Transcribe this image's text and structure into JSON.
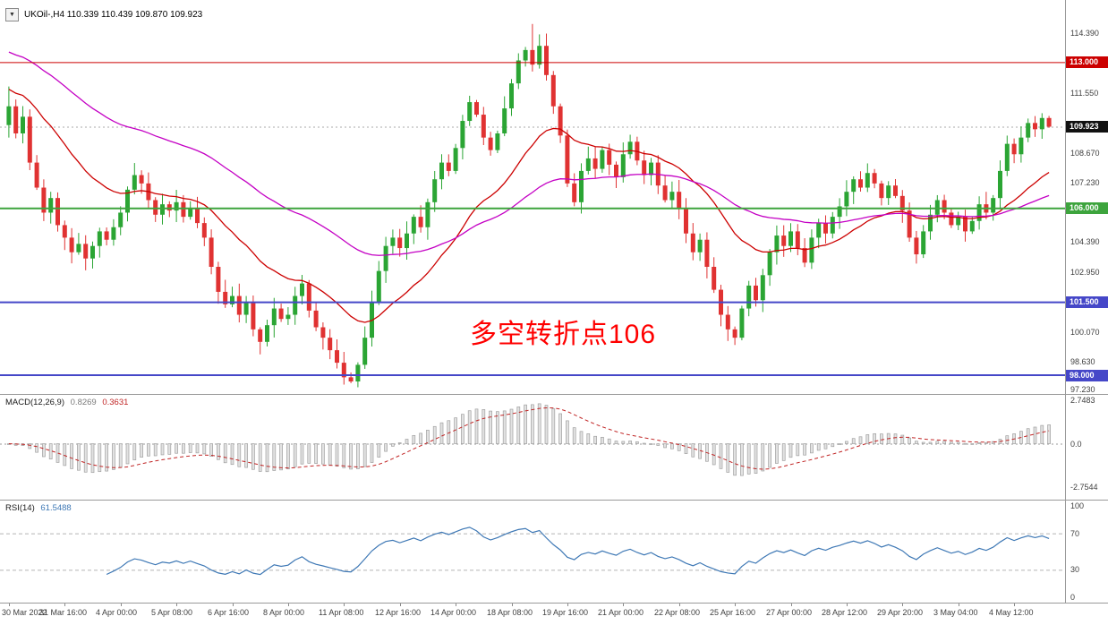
{
  "header": {
    "one_click_icon": "▼",
    "symbol_ohlc": "UKOil-,H4 110.339 110.439 109.870 109.923"
  },
  "main": {
    "annotation": {
      "text": "多空转折点106",
      "color": "#FF0000"
    }
  },
  "chart_data": [
    {
      "type": "candlestick",
      "title": "UKOil- H4",
      "ohlc_current": {
        "open": 110.339,
        "high": 110.439,
        "low": 109.87,
        "close": 109.923
      },
      "ylim": [
        97.1,
        116.0
      ],
      "open_first": 110.0,
      "closes": [
        110.9,
        109.6,
        110.4,
        108.2,
        107.0,
        105.8,
        106.5,
        105.2,
        104.6,
        103.9,
        104.3,
        103.6,
        104.2,
        104.9,
        104.5,
        105.1,
        105.8,
        106.9,
        107.6,
        107.2,
        106.4,
        105.7,
        106.2,
        105.9,
        106.3,
        105.6,
        106.0,
        105.3,
        104.6,
        103.2,
        102.0,
        101.4,
        101.8,
        100.9,
        101.5,
        100.2,
        99.6,
        100.4,
        101.2,
        100.7,
        100.9,
        101.8,
        102.4,
        101.1,
        100.3,
        99.8,
        99.2,
        98.6,
        97.9,
        97.7,
        98.5,
        99.8,
        101.5,
        103.0,
        104.2,
        104.6,
        104.1,
        104.8,
        105.6,
        105.1,
        106.3,
        107.4,
        108.2,
        107.8,
        108.9,
        110.2,
        111.1,
        110.5,
        109.4,
        108.8,
        109.6,
        110.8,
        112.0,
        113.1,
        113.6,
        112.9,
        113.8,
        112.4,
        110.9,
        109.5,
        107.2,
        106.3,
        107.8,
        108.4,
        107.9,
        108.8,
        108.1,
        107.5,
        108.6,
        109.2,
        108.3,
        107.6,
        108.2,
        107.1,
        106.4,
        106.8,
        106.0,
        104.8,
        103.9,
        104.5,
        103.2,
        102.1,
        100.9,
        100.2,
        99.8,
        101.2,
        102.3,
        101.6,
        102.8,
        103.9,
        104.7,
        104.2,
        104.9,
        104.1,
        103.4,
        104.6,
        105.3,
        104.8,
        105.6,
        106.1,
        106.8,
        107.4,
        107.0,
        107.7,
        107.2,
        106.5,
        107.1,
        106.6,
        105.9,
        104.6,
        103.8,
        104.9,
        105.7,
        106.4,
        105.8,
        105.2,
        105.6,
        104.9,
        105.4,
        106.2,
        105.8,
        106.5,
        107.8,
        109.1,
        108.6,
        109.4,
        110.1,
        109.8,
        110.339,
        109.923
      ],
      "overrides": [
        {
          "index": 0,
          "high": 111.85,
          "low": 109.4
        },
        {
          "index": 36,
          "low": 99.0
        },
        {
          "index": 48,
          "low": 97.55
        },
        {
          "index": 49,
          "low": 97.62
        },
        {
          "index": 75,
          "high": 114.85
        },
        {
          "index": 76,
          "high": 114.35
        },
        {
          "index": 104,
          "low": 99.45
        },
        {
          "index": 149,
          "high": 110.439,
          "low": 109.87
        }
      ],
      "bull_color": "#2BA534",
      "bear_color": "#E03232",
      "moving_averages": [
        {
          "name": "MA-fast",
          "period": 21,
          "seed": 111.8,
          "color": "#CC0000"
        },
        {
          "name": "MA-slow",
          "period": 55,
          "seed": 113.6,
          "color": "#C400C4"
        }
      ],
      "hlines": [
        {
          "label": "113.000",
          "price": 113.0,
          "color": "#CC0000",
          "line_width": 1
        },
        {
          "label": "106.000",
          "price": 106.0,
          "color": "#3DA43D",
          "line_width": 2
        },
        {
          "label": "101.500",
          "price": 101.5,
          "color": "#4547C8",
          "line_width": 2
        },
        {
          "label": "98.000",
          "price": 98.0,
          "color": "#4547C8",
          "line_width": 2
        }
      ],
      "current_price": {
        "label": "109.923",
        "value": 109.923,
        "tag_color": "#111111"
      },
      "scale_labels": [
        "114.390",
        "111.550",
        "108.670",
        "107.230",
        "104.390",
        "102.950",
        "100.070",
        "98.630",
        "97.230"
      ]
    },
    {
      "type": "macd",
      "label": "MACD(12,26,9)",
      "value_main": "0.8269",
      "value_signal": "0.3631",
      "params": {
        "fast": 12,
        "slow": 26,
        "signal": 9
      },
      "ylim": [
        -3.55,
        3.1
      ],
      "scale_labels": [
        "2.7483",
        "0.0",
        "-2.7544"
      ],
      "histogram_fill": "#E2E2E2",
      "histogram_stroke": "#A0A0A0",
      "signal_color": "#C12626"
    },
    {
      "type": "rsi",
      "label": "RSI(14)",
      "value": "61.5488",
      "period": 14,
      "levels": [
        70,
        30
      ],
      "scale_labels": [
        "100",
        "70",
        "30",
        "0"
      ],
      "line_color": "#3E78B5",
      "level_color": "#B5B5B5"
    }
  ],
  "time_axis": {
    "bars_per_label": 8,
    "labels": [
      "30 Mar 2022",
      "31 Mar 16:00",
      "4 Apr 00:00",
      "5 Apr 08:00",
      "6 Apr 16:00",
      "8 Apr 00:00",
      "11 Apr 08:00",
      "12 Apr 16:00",
      "14 Apr 00:00",
      "18 Apr 08:00",
      "19 Apr 16:00",
      "21 Apr 00:00",
      "22 Apr 08:00",
      "25 Apr 16:00",
      "27 Apr 00:00",
      "28 Apr 12:00",
      "29 Apr 20:00",
      "3 May 04:00",
      "4 May 12:00"
    ]
  }
}
